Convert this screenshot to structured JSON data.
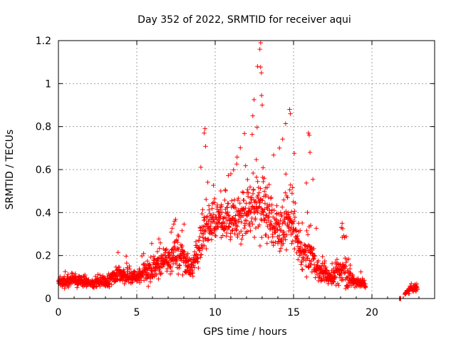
{
  "chart_data": {
    "type": "scatter",
    "title": "Day 352 of 2022, SRMTID for receiver aqui",
    "xlabel": "GPS time / hours",
    "ylabel": "SRMTID / TECUs",
    "xlim": [
      0,
      24
    ],
    "ylim": [
      0,
      1.2
    ],
    "xticks": [
      0,
      5,
      10,
      15,
      20
    ],
    "xtick_labels": [
      "0",
      "5",
      "10",
      "15",
      "20"
    ],
    "yticks": [
      0,
      0.2,
      0.4,
      0.6,
      0.8,
      1.0,
      1.2
    ],
    "ytick_labels": [
      "0",
      "0.2",
      "0.4",
      "0.6",
      "0.8",
      "1",
      "1.2"
    ],
    "grid": true,
    "marker": "plus",
    "color": "#ff0000",
    "series": [
      {
        "name": "SRMTID",
        "envelope": [
          {
            "x": 0.0,
            "base": 0.07,
            "spread": 0.03,
            "peak": 0.12
          },
          {
            "x": 1.0,
            "base": 0.09,
            "spread": 0.03,
            "peak": 0.14
          },
          {
            "x": 2.0,
            "base": 0.07,
            "spread": 0.02,
            "peak": 0.11
          },
          {
            "x": 3.0,
            "base": 0.08,
            "spread": 0.03,
            "peak": 0.12
          },
          {
            "x": 3.8,
            "base": 0.11,
            "spread": 0.04,
            "peak": 0.22
          },
          {
            "x": 5.0,
            "base": 0.1,
            "spread": 0.03,
            "peak": 0.17
          },
          {
            "x": 6.0,
            "base": 0.14,
            "spread": 0.06,
            "peak": 0.27
          },
          {
            "x": 7.0,
            "base": 0.18,
            "spread": 0.07,
            "peak": 0.31
          },
          {
            "x": 7.8,
            "base": 0.2,
            "spread": 0.08,
            "peak": 0.43
          },
          {
            "x": 8.5,
            "base": 0.14,
            "spread": 0.05,
            "peak": 0.21
          },
          {
            "x": 9.3,
            "base": 0.32,
            "spread": 0.12,
            "peak": 0.79
          },
          {
            "x": 10.0,
            "base": 0.37,
            "spread": 0.1,
            "peak": 0.55
          },
          {
            "x": 11.0,
            "base": 0.36,
            "spread": 0.1,
            "peak": 0.58
          },
          {
            "x": 12.2,
            "base": 0.42,
            "spread": 0.14,
            "peak": 0.86
          },
          {
            "x": 12.9,
            "base": 0.45,
            "spread": 0.18,
            "peak": 1.19
          },
          {
            "x": 14.0,
            "base": 0.32,
            "spread": 0.12,
            "peak": 0.72
          },
          {
            "x": 14.8,
            "base": 0.38,
            "spread": 0.14,
            "peak": 0.88
          },
          {
            "x": 15.5,
            "base": 0.2,
            "spread": 0.08,
            "peak": 0.33
          },
          {
            "x": 16.0,
            "base": 0.23,
            "spread": 0.1,
            "peak": 0.77
          },
          {
            "x": 16.6,
            "base": 0.12,
            "spread": 0.05,
            "peak": 0.23
          },
          {
            "x": 17.5,
            "base": 0.1,
            "spread": 0.04,
            "peak": 0.16
          },
          {
            "x": 18.2,
            "base": 0.14,
            "spread": 0.08,
            "peak": 0.35
          },
          {
            "x": 18.8,
            "base": 0.08,
            "spread": 0.03,
            "peak": 0.13
          },
          {
            "x": 19.5,
            "base": 0.07,
            "spread": 0.02,
            "peak": 0.13
          },
          {
            "x": 21.8,
            "base": 0.0,
            "spread": 0.0,
            "peak": 0.0
          },
          {
            "x": 22.5,
            "base": 0.05,
            "spread": 0.02,
            "peak": 0.08
          }
        ],
        "gaps": [
          [
            19.6,
            21.7
          ],
          [
            21.9,
            22.1
          ]
        ]
      }
    ]
  }
}
